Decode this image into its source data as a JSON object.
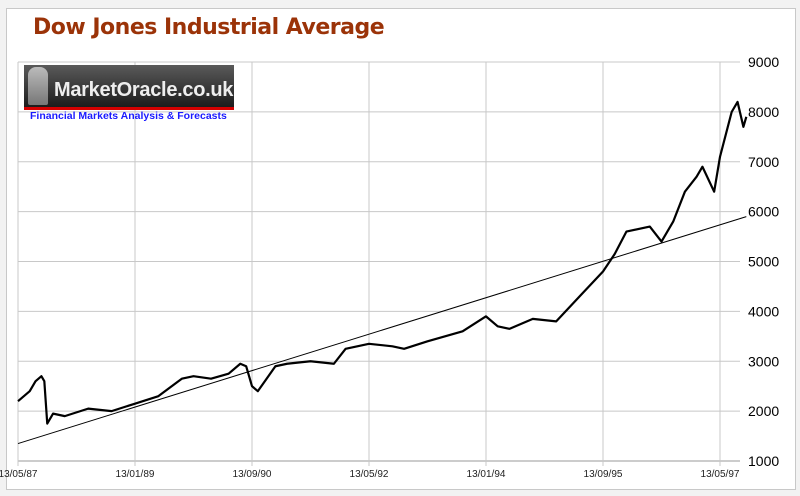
{
  "chart_data": {
    "type": "line",
    "title": "Dow Jones Industrial Average",
    "xlabel": "",
    "ylabel": "",
    "x_unit": "months since 13/05/87",
    "x_tick_labels": [
      "13/05/87",
      "13/01/89",
      "13/09/90",
      "13/05/92",
      "13/01/94",
      "13/09/95",
      "13/05/97"
    ],
    "x_tick_positions": [
      0,
      20,
      40,
      60,
      80,
      100,
      120
    ],
    "xlim": [
      0,
      124.5
    ],
    "y_ticks": [
      1000,
      2000,
      3000,
      4000,
      5000,
      6000,
      7000,
      8000,
      9000
    ],
    "ylim": [
      1000,
      9000
    ],
    "grid": true,
    "series": [
      {
        "name": "DJIA",
        "color": "#000000",
        "x": [
          0,
          2,
          3,
          4,
          4.5,
          5,
          6,
          8,
          12,
          16,
          20,
          24,
          28,
          30,
          33,
          36,
          38,
          39,
          40,
          41,
          44,
          46,
          50,
          54,
          56,
          60,
          64,
          66,
          70,
          76,
          80,
          82,
          84,
          88,
          92,
          96,
          100,
          102,
          104,
          108,
          110,
          112,
          114,
          116,
          117,
          119,
          120,
          122,
          123,
          124,
          124.5
        ],
        "values": [
          2200,
          2400,
          2600,
          2700,
          2600,
          1750,
          1950,
          1900,
          2050,
          2000,
          2150,
          2300,
          2650,
          2700,
          2650,
          2750,
          2950,
          2900,
          2500,
          2400,
          2900,
          2950,
          3000,
          2950,
          3250,
          3350,
          3300,
          3250,
          3400,
          3600,
          3900,
          3700,
          3650,
          3850,
          3800,
          4300,
          4800,
          5150,
          5600,
          5700,
          5400,
          5800,
          6400,
          6700,
          6900,
          6400,
          7100,
          8000,
          8200,
          7700,
          7900
        ]
      },
      {
        "name": "Trend line",
        "color": "#000000",
        "x": [
          0,
          124.5
        ],
        "values": [
          1350,
          5900
        ]
      }
    ]
  },
  "logo": {
    "name": "MarketOracle.co.uk",
    "tagline": "Financial Markets Analysis & Forecasts"
  }
}
